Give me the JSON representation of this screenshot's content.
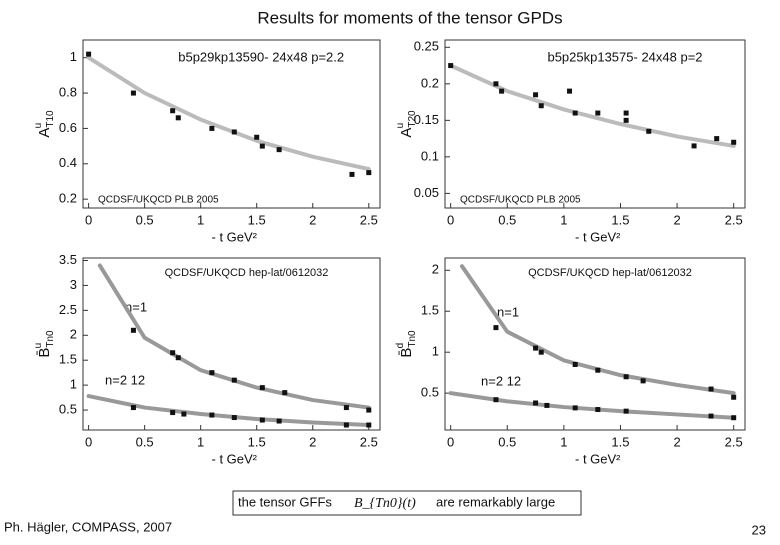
{
  "slide": {
    "title": "Results for moments of the tensor GPDs",
    "note_before": "the tensor GFFs",
    "note_math": "B_{Tn0}(t)",
    "note_after": "are remarkably large",
    "footer": "Ph. Hägler, COMPASS, 2007",
    "page": "23"
  },
  "chart_data": [
    {
      "type": "scatter",
      "title": "b5p29kp13590- 24x48  p=2.2",
      "ylabel": {
        "main": "A",
        "sub": "T10",
        "sup": "u"
      },
      "xlabel": "- t  GeV²",
      "note": "QCDSF/UKQCD PLB 2005",
      "annotations": [],
      "xlim": [
        -0.05,
        2.6
      ],
      "xticks": [
        0,
        0.5,
        1,
        1.5,
        2,
        2.5
      ],
      "ylim": [
        0.15,
        1.1
      ],
      "yticks": [
        0.2,
        0.4,
        0.6,
        0.8,
        1
      ],
      "series": [
        {
          "style": "line",
          "color": "#bbbbbb",
          "x": [
            0,
            0.5,
            1,
            1.5,
            2,
            2.5
          ],
          "values": [
            1.0,
            0.8,
            0.65,
            0.53,
            0.44,
            0.37
          ]
        },
        {
          "style": "scatter",
          "color": "#111111",
          "x": [
            0,
            0.4,
            0.75,
            0.8,
            1.1,
            1.3,
            1.5,
            1.55,
            1.7,
            2.35,
            2.5
          ],
          "values": [
            1.02,
            0.8,
            0.7,
            0.66,
            0.6,
            0.58,
            0.55,
            0.5,
            0.48,
            0.34,
            0.35
          ]
        }
      ]
    },
    {
      "type": "scatter",
      "title": "b5p25kp13575- 24x48  p=2",
      "ylabel": {
        "main": "A",
        "sub": "T20",
        "sup": "u"
      },
      "xlabel": "- t  GeV²",
      "note": "QCDSF/UKQCD PLB 2005",
      "annotations": [],
      "xlim": [
        -0.05,
        2.6
      ],
      "xticks": [
        0,
        0.5,
        1,
        1.5,
        2,
        2.5
      ],
      "ylim": [
        0.03,
        0.26
      ],
      "yticks": [
        0.05,
        0.1,
        0.15,
        0.2,
        0.25
      ],
      "series": [
        {
          "style": "line",
          "color": "#bbbbbb",
          "x": [
            0,
            0.5,
            1,
            1.5,
            2,
            2.5
          ],
          "values": [
            0.225,
            0.19,
            0.165,
            0.145,
            0.128,
            0.115
          ]
        },
        {
          "style": "scatter",
          "color": "#111111",
          "x": [
            0,
            0.4,
            0.45,
            0.75,
            0.8,
            1.05,
            1.1,
            1.3,
            1.55,
            1.55,
            1.75,
            2.15,
            2.35,
            2.5
          ],
          "values": [
            0.225,
            0.2,
            0.19,
            0.185,
            0.17,
            0.19,
            0.16,
            0.16,
            0.16,
            0.15,
            0.135,
            0.115,
            0.125,
            0.12
          ]
        }
      ]
    },
    {
      "type": "scatter",
      "title": "QCDSF/UKQCD hep-lat/0612032",
      "ylabel": {
        "main": "B̄",
        "sub": "Tn0",
        "sup": "u"
      },
      "xlabel": "- t  GeV²",
      "note": "",
      "annotations": [
        "n=1",
        "n=2  12"
      ],
      "xlim": [
        -0.05,
        2.6
      ],
      "xticks": [
        0,
        0.5,
        1,
        1.5,
        2,
        2.5
      ],
      "ylim": [
        0.1,
        3.55
      ],
      "yticks": [
        0.5,
        1,
        1.5,
        2,
        2.5,
        3,
        3.5
      ],
      "series": [
        {
          "style": "line",
          "color": "#999999",
          "x": [
            0.1,
            0.5,
            1,
            1.5,
            2,
            2.5
          ],
          "values": [
            3.4,
            1.95,
            1.3,
            0.95,
            0.7,
            0.55
          ]
        },
        {
          "style": "scatter",
          "color": "#111111",
          "x": [
            0.4,
            0.75,
            0.8,
            1.1,
            1.3,
            1.55,
            1.75,
            2.3,
            2.5
          ],
          "values": [
            2.1,
            1.65,
            1.55,
            1.25,
            1.1,
            0.95,
            0.85,
            0.55,
            0.5
          ]
        },
        {
          "style": "line",
          "color": "#999999",
          "x": [
            0,
            0.5,
            1,
            1.5,
            2,
            2.5
          ],
          "values": [
            0.78,
            0.55,
            0.42,
            0.32,
            0.25,
            0.2
          ]
        },
        {
          "style": "scatter",
          "color": "#111111",
          "x": [
            0.4,
            0.75,
            0.85,
            1.1,
            1.3,
            1.55,
            1.7,
            2.3,
            2.5
          ],
          "values": [
            0.55,
            0.45,
            0.42,
            0.4,
            0.35,
            0.3,
            0.28,
            0.2,
            0.2
          ]
        }
      ]
    },
    {
      "type": "scatter",
      "title": "QCDSF/UKQCD hep-lat/0612032",
      "ylabel": {
        "main": "B̄",
        "sub": "Tn0",
        "sup": "d"
      },
      "xlabel": "- t  GeV²",
      "note": "",
      "annotations": [
        "n=1",
        "n=2  12"
      ],
      "xlim": [
        -0.05,
        2.6
      ],
      "xticks": [
        0,
        0.5,
        1,
        1.5,
        2,
        2.5
      ],
      "ylim": [
        0.05,
        2.15
      ],
      "yticks": [
        0.5,
        1,
        1.5,
        2
      ],
      "series": [
        {
          "style": "line",
          "color": "#999999",
          "x": [
            0.1,
            0.5,
            1,
            1.5,
            2,
            2.5
          ],
          "values": [
            2.05,
            1.25,
            0.9,
            0.72,
            0.6,
            0.5
          ]
        },
        {
          "style": "scatter",
          "color": "#111111",
          "x": [
            0.4,
            0.75,
            0.8,
            1.1,
            1.3,
            1.55,
            1.7,
            2.3,
            2.5
          ],
          "values": [
            1.3,
            1.05,
            1.0,
            0.85,
            0.78,
            0.7,
            0.65,
            0.55,
            0.45
          ]
        },
        {
          "style": "line",
          "color": "#999999",
          "x": [
            0,
            0.5,
            1,
            1.5,
            2,
            2.5
          ],
          "values": [
            0.5,
            0.4,
            0.33,
            0.28,
            0.24,
            0.2
          ]
        },
        {
          "style": "scatter",
          "color": "#111111",
          "x": [
            0.4,
            0.75,
            0.85,
            1.1,
            1.3,
            1.55,
            2.3,
            2.5
          ],
          "values": [
            0.42,
            0.38,
            0.35,
            0.32,
            0.3,
            0.28,
            0.22,
            0.2
          ]
        }
      ]
    }
  ]
}
